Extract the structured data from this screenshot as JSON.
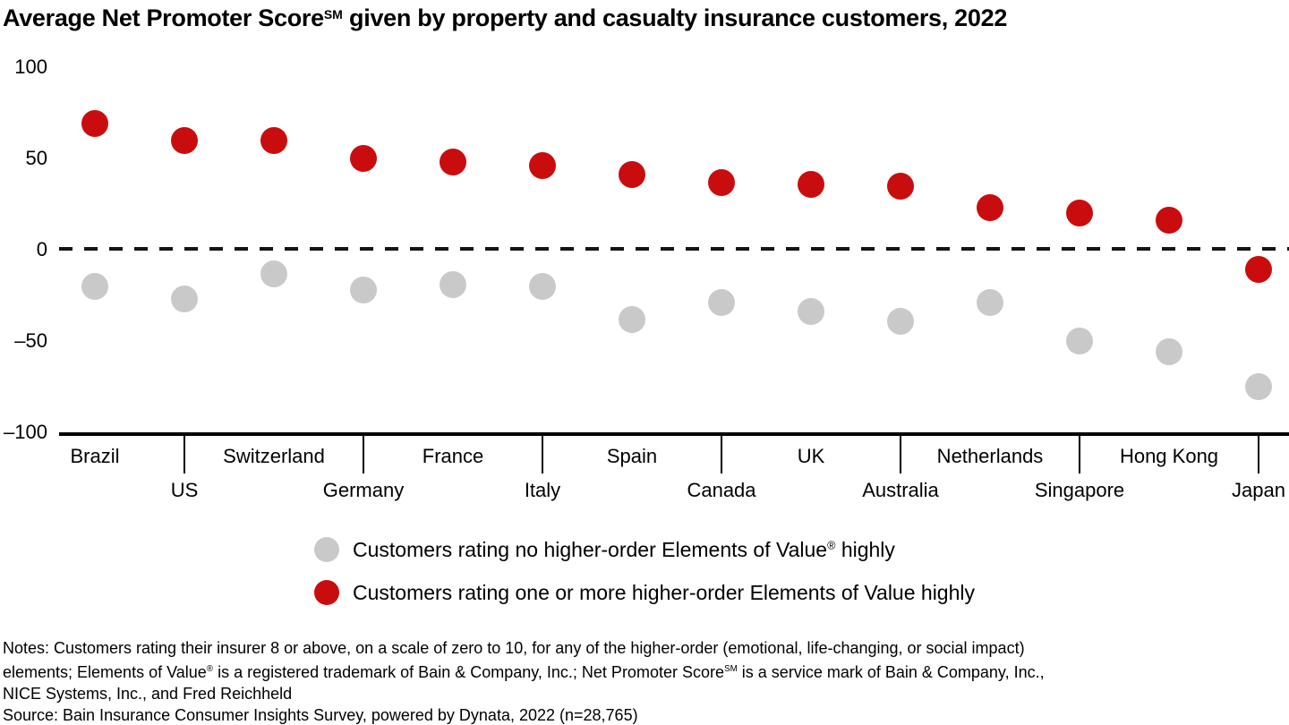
{
  "title": {
    "pre": "Average Net Promoter Score",
    "sup": "SM",
    "post": " given by property and casualty insurance customers, 2022"
  },
  "chart_data": {
    "type": "scatter",
    "title": "Average Net Promoter Score℠ given by property and casualty insurance customers, 2022",
    "categories": [
      "Brazil",
      "US",
      "Switzerland",
      "Germany",
      "France",
      "Italy",
      "Spain",
      "Canada",
      "UK",
      "Australia",
      "Netherlands",
      "Singapore",
      "Hong Kong",
      "Japan"
    ],
    "series": [
      {
        "key": "red",
        "name": "Customers rating one or more higher-order Elements of Value highly",
        "color": "#C90D0E",
        "values": [
          69,
          60,
          60,
          50,
          48,
          46,
          41,
          37,
          36,
          35,
          23,
          20,
          16,
          -11
        ]
      },
      {
        "key": "gray",
        "name": "Customers rating no higher-order Elements of Value highly",
        "color": "#C9C9C9",
        "values": [
          -20,
          -27,
          -13,
          -22,
          -19,
          -20,
          -38,
          -29,
          -34,
          -39,
          -29,
          -50,
          -56,
          -75
        ]
      }
    ],
    "ylim": [
      -100,
      100
    ],
    "yticks": [
      100,
      50,
      0,
      -50,
      -100
    ],
    "ytick_labels": [
      "100",
      "50",
      "0",
      "–50",
      "–100"
    ],
    "zero_line": "dashed",
    "grid": false,
    "legend_position": "bottom"
  },
  "legend": {
    "items": [
      {
        "key": "gray",
        "color": "#C9C9C9",
        "segments": [
          {
            "t": "Customers rating no higher-order Elements of Value"
          },
          {
            "t": "®",
            "sup": true
          },
          {
            "t": " highly"
          }
        ]
      },
      {
        "key": "red",
        "color": "#C90D0E",
        "segments": [
          {
            "t": "Customers rating one or more higher-order Elements of Value highly"
          }
        ]
      }
    ]
  },
  "notes": {
    "lines": [
      [
        {
          "t": "Notes: Customers rating their insurer 8 or above, on a scale of zero to 10, for any of the higher-order (emotional, life-changing, or social impact)"
        }
      ],
      [
        {
          "t": "elements; Elements of Value"
        },
        {
          "t": "®",
          "sup": true
        },
        {
          "t": " is a registered trademark of Bain & Company, Inc.; Net Promoter Score"
        },
        {
          "t": "SM",
          "sup": true
        },
        {
          "t": " is a service mark of Bain & Company, Inc.,"
        }
      ],
      [
        {
          "t": "NICE Systems, Inc., and Fred Reichheld"
        }
      ],
      [
        {
          "t": "Source: Bain Insurance Consumer Insights Survey, powered by Dynata, 2022 (n=28,765)"
        }
      ]
    ]
  }
}
